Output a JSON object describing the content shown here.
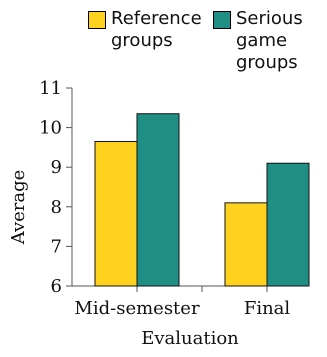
{
  "chart_data": {
    "type": "bar",
    "categories": [
      "Mid-semester",
      "Final"
    ],
    "series": [
      {
        "name": "Reference groups",
        "values": [
          9.65,
          8.1
        ],
        "color": "#ffd21f"
      },
      {
        "name": "Serious game groups",
        "values": [
          10.35,
          9.1
        ],
        "color": "#1f8f86"
      }
    ],
    "xlabel": "Evaluation",
    "ylabel": "Average",
    "ylim": [
      6,
      11
    ],
    "yticks": [
      "6",
      "7",
      "8",
      "9",
      "10",
      "11"
    ],
    "legend_position": "top",
    "grid": false
  }
}
